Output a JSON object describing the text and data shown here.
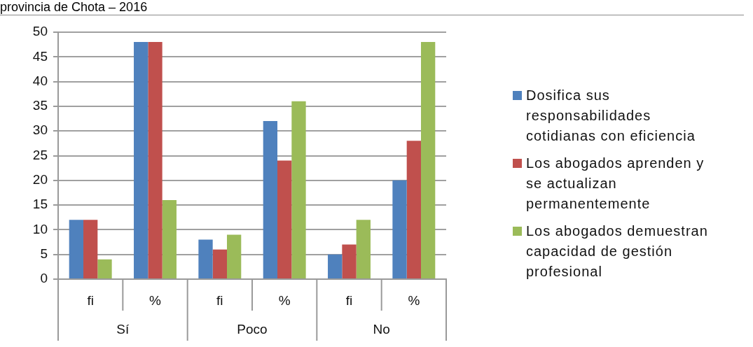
{
  "chart_data": {
    "type": "bar",
    "title": "provincia de Chota – 2016",
    "categories": [
      "fi",
      "%",
      "fi",
      "%",
      "fi",
      "%"
    ],
    "annotations": [
      "Sí",
      "Poco",
      "No"
    ],
    "series": [
      {
        "name": "Dosifica sus responsabilidades cotidianas con eficiencia",
        "color": "#4f81bd",
        "values": [
          12,
          48,
          8,
          32,
          5,
          20
        ]
      },
      {
        "name": "Los abogados aprenden y se actualizan permanentemente",
        "color": "#c0504d",
        "values": [
          12,
          48,
          6,
          24,
          7,
          28
        ]
      },
      {
        "name": "Los abogados demuestran capacidad de gestión profesional",
        "color": "#9bbb59",
        "values": [
          4,
          16,
          9,
          36,
          12,
          48
        ]
      }
    ],
    "ylim": [
      0,
      50
    ],
    "yticks": [
      0,
      5,
      10,
      15,
      20,
      25,
      30,
      35,
      40,
      45,
      50
    ],
    "grid": "y",
    "legend": "right"
  }
}
